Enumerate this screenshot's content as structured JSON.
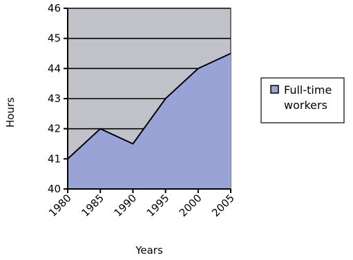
{
  "chart_data": {
    "type": "area",
    "title": "",
    "xlabel": "Years",
    "ylabel": "Hours",
    "x": [
      "1980",
      "1985",
      "1990",
      "1995",
      "2000",
      "2005"
    ],
    "series": [
      {
        "name": "Full-time workers",
        "values": [
          41,
          42,
          41.5,
          43,
          44,
          44.5
        ]
      }
    ],
    "ylim": [
      40,
      46
    ],
    "yticks": [
      40,
      41,
      42,
      43,
      44,
      45,
      46
    ],
    "grid": true,
    "legend": "right",
    "colors": {
      "plot_background": "#c0c1c9",
      "area_fill": "#9aa3d6",
      "line": "#000000",
      "legend_swatch": "#9aa3d6"
    }
  }
}
